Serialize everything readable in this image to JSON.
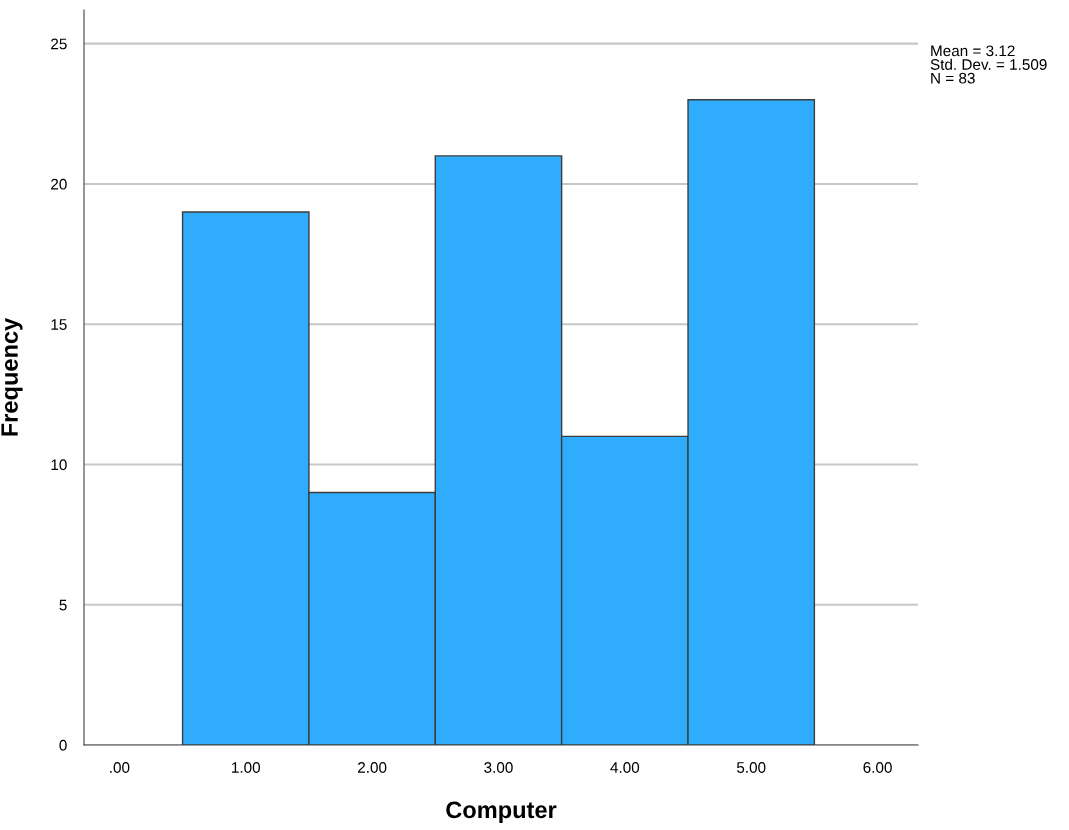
{
  "chart_data": {
    "type": "histogram",
    "xlabel": "Computer",
    "ylabel": "Frequency",
    "bins": [
      0.5,
      1.5,
      2.5,
      3.5,
      4.5,
      5.5
    ],
    "values": [
      19,
      9,
      21,
      11,
      23
    ],
    "color": "#30acfc",
    "xlim": [
      -0.28,
      6.32
    ],
    "xticks": [
      {
        "value": 0,
        "label": ".00"
      },
      {
        "value": 1,
        "label": "1.00"
      },
      {
        "value": 2,
        "label": "2.00"
      },
      {
        "value": 3,
        "label": "3.00"
      },
      {
        "value": 4,
        "label": "4.00"
      },
      {
        "value": 5,
        "label": "5.00"
      },
      {
        "value": 6,
        "label": "6.00"
      }
    ],
    "ylim": [
      0,
      26.2
    ],
    "yticks": [
      0,
      5,
      10,
      15,
      20,
      25
    ],
    "grid": "y",
    "annotations": [
      "Mean = 3.12\nStd. Dev. = 1.509\nN = 83"
    ]
  }
}
